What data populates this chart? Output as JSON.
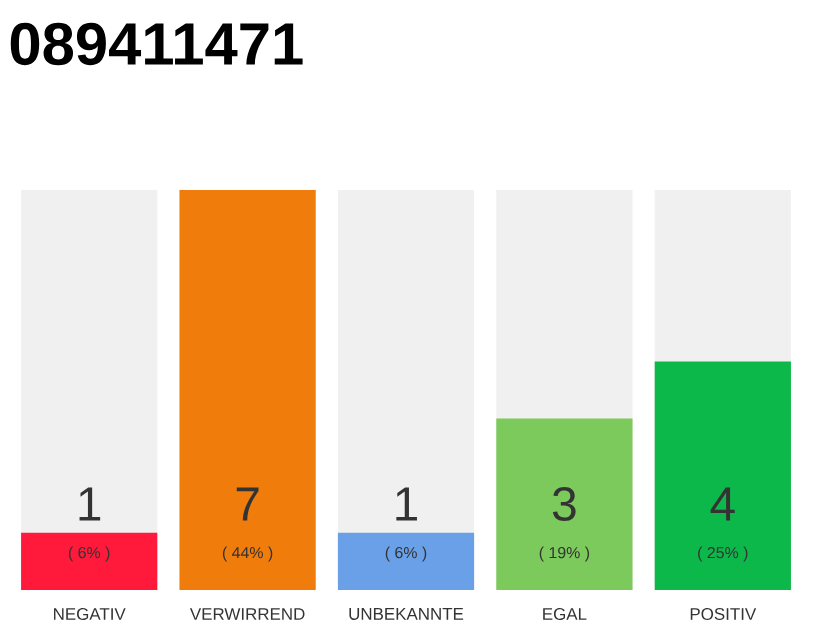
{
  "chart_data": {
    "type": "bar",
    "title": "089411471",
    "categories": [
      "NEGATIV",
      "VERWIRREND",
      "UNBEKANNTE",
      "EGAL",
      "POSITIV"
    ],
    "values": [
      1,
      7,
      1,
      3,
      4
    ],
    "colors": [
      "#ff1a3c",
      "#f07c0c",
      "#6aa0e8",
      "#7cc95c",
      "#0db84a"
    ],
    "data_labels": true,
    "annotations": [
      "( 6% )",
      "( 44% )",
      "( 6% )",
      "( 19% )",
      "( 25% )"
    ]
  }
}
